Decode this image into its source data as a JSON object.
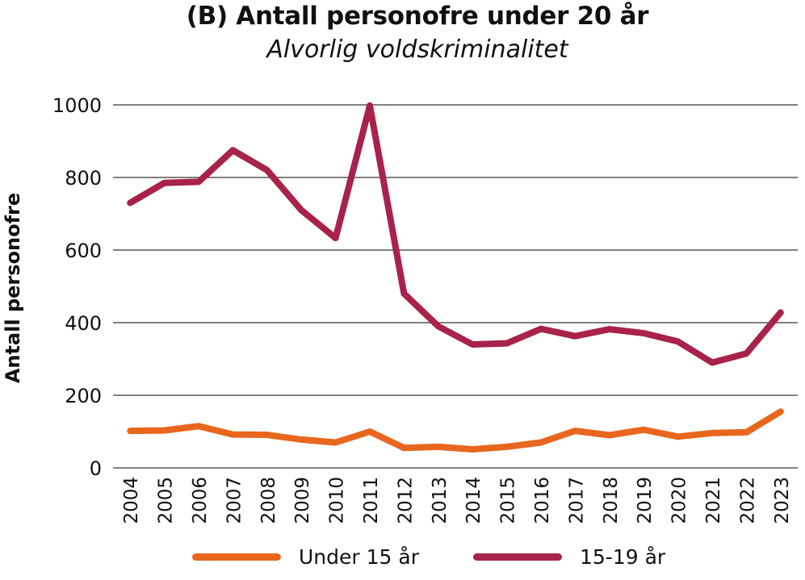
{
  "chart_data": {
    "type": "line",
    "title": "(B) Antall personofre under 20 år",
    "subtitle": "Alvorlig voldskriminalitet",
    "xlabel": "",
    "ylabel": "Antall personofre",
    "ylim": [
      0,
      1000
    ],
    "yticks": [
      0,
      200,
      400,
      600,
      800,
      1000
    ],
    "grid": true,
    "legend_position": "bottom",
    "categories": [
      "2004",
      "2005",
      "2006",
      "2007",
      "2008",
      "2009",
      "2010",
      "2011",
      "2012",
      "2013",
      "2014",
      "2015",
      "2016",
      "2017",
      "2018",
      "2019",
      "2020",
      "2021",
      "2022",
      "2023"
    ],
    "series": [
      {
        "name": "Under 15 år",
        "color": "#E8661D",
        "values": [
          102,
          103,
          115,
          92,
          91,
          78,
          70,
          100,
          55,
          58,
          51,
          58,
          70,
          102,
          90,
          105,
          86,
          96,
          98,
          155
        ]
      },
      {
        "name": "15-19 år",
        "color": "#A8224A",
        "values": [
          730,
          785,
          788,
          875,
          820,
          710,
          633,
          998,
          480,
          390,
          340,
          343,
          383,
          363,
          382,
          371,
          348,
          290,
          315,
          428
        ]
      }
    ]
  }
}
